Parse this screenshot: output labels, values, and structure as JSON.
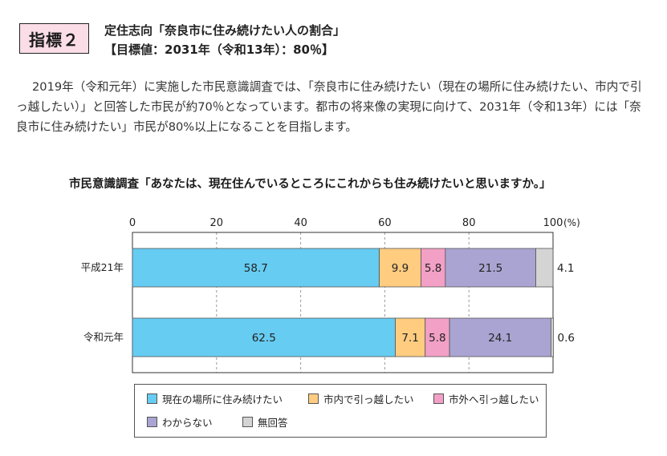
{
  "header": {
    "badge": "指標２",
    "title": "定住志向「奈良市に住み続けたい人の割合」",
    "target": "【目標値：2031年（令和13年）：80％】"
  },
  "description": "2019年（令和元年）に実施した市民意識調査では、「奈良市に住み続けたい（現在の場所に住み続けたい、市内で引っ越したい）」と回答した市民が約70％となっています。都市の将来像の実現に向けて、2031年（令和13年）には「奈良市に住み続けたい」市民が80%以上になることを目指します。",
  "colors": {
    "stay_current": "#66ccf2",
    "move_within": "#ffcc80",
    "move_outside": "#f2a0c5",
    "unknown": "#aaa4d2",
    "no_answer": "#d4d4d4"
  },
  "chart_data": {
    "type": "bar",
    "orientation": "horizontal",
    "stacked": true,
    "title": "市民意識調査「あなたは、現在住んでいるところにこれからも住み続けたいと思いますか。」",
    "unit_label": "(%)",
    "xlim": [
      0,
      100
    ],
    "x_ticks": [
      0,
      20,
      40,
      60,
      80,
      100
    ],
    "grid": true,
    "legend_position": "bottom",
    "categories": [
      "平成21年",
      "令和元年"
    ],
    "series": [
      {
        "name": "現在の場所に住み続けたい",
        "color": "#66ccf2",
        "values": [
          58.7,
          62.5
        ]
      },
      {
        "name": "市内で引っ越したい",
        "color": "#ffcc80",
        "values": [
          9.9,
          7.1
        ]
      },
      {
        "name": "市外へ引っ越したい",
        "color": "#f2a0c5",
        "values": [
          5.8,
          5.8
        ]
      },
      {
        "name": "わからない",
        "color": "#aaa4d2",
        "values": [
          21.5,
          24.1
        ]
      },
      {
        "name": "無回答",
        "color": "#d4d4d4",
        "values": [
          4.1,
          0.6
        ]
      }
    ]
  }
}
